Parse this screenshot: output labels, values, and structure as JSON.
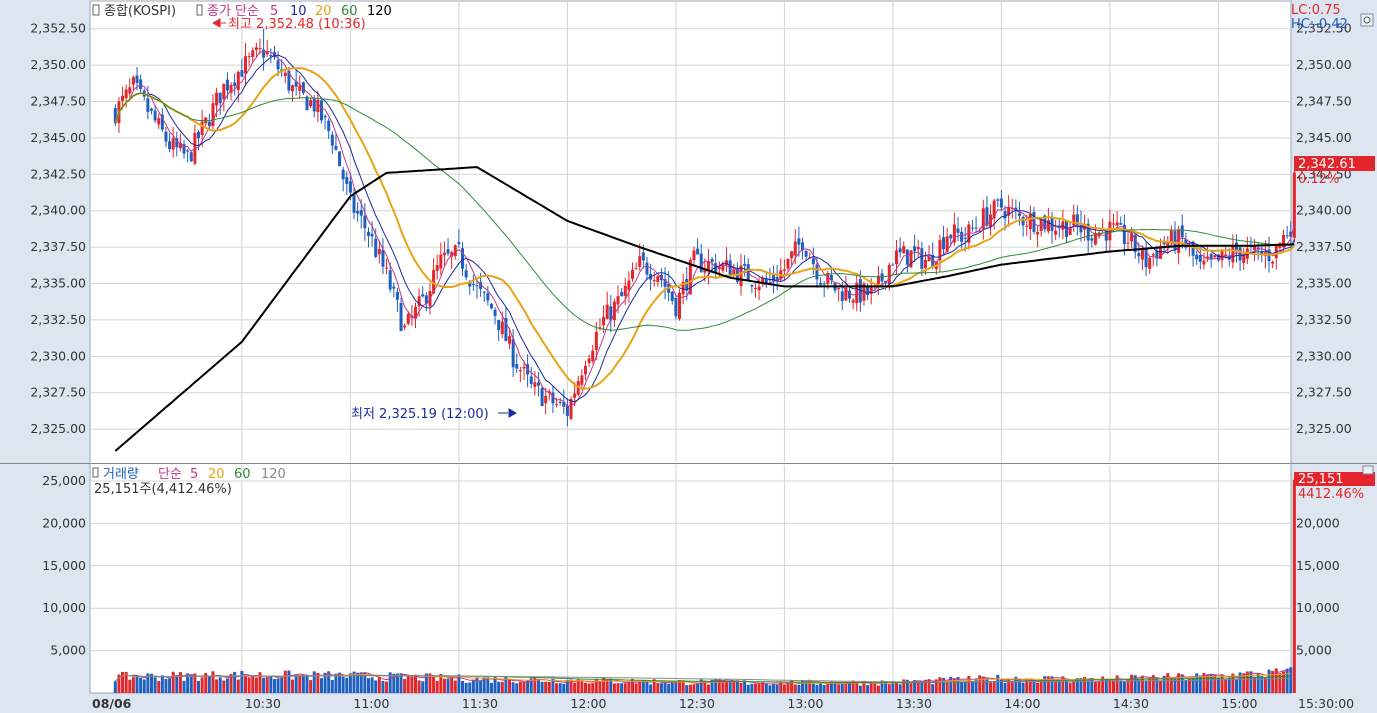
{
  "price_panel": {
    "legend": {
      "series_title": "종합(KOSPI)",
      "ma_prefix": "종가 단순",
      "periods": [
        "5",
        "10",
        "20",
        "60",
        "120"
      ],
      "colors": [
        "#c0368e",
        "#1a2aa0",
        "#e8a317",
        "#2e8b3a",
        "#000000"
      ]
    },
    "high_annotation": "최고 2,352.48 (10:36)",
    "low_annotation": "최저 2,325.19 (12:00)",
    "lc_label": "LC:0.75",
    "hc_label": "HC:-0.42",
    "last_price": "2,342.61",
    "change_pct": "0.12%"
  },
  "volume_panel": {
    "legend": {
      "title": "거래량",
      "ma_prefix": "단순",
      "periods": [
        "5",
        "20",
        "60",
        "120"
      ],
      "colors": [
        "#c0368e",
        "#e8a317",
        "#2e8b3a",
        "#888888"
      ]
    },
    "info": "25,151주(4,412.46%)",
    "last_volume": "25,151",
    "last_pct": "4412.46%"
  },
  "colors": {
    "up": "#e3262b",
    "down": "#1f5fc0",
    "bg": "#ffffff",
    "axis_bg": "#dde6f0",
    "grid": "#d4d4d4"
  },
  "chart_data": [
    {
      "type": "candlestick",
      "title": "종합(KOSPI)",
      "x_ticks": [
        "08/06",
        "10:30",
        "11:00",
        "11:30",
        "12:00",
        "12:30",
        "13:00",
        "13:30",
        "14:00",
        "14:30",
        "15:00",
        "15:30:00"
      ],
      "y_ticks": [
        "2,325.00",
        "2,327.50",
        "2,330.00",
        "2,332.50",
        "2,335.00",
        "2,337.50",
        "2,340.00",
        "2,342.50",
        "2,345.00",
        "2,347.50",
        "2,350.00",
        "2,352.50"
      ],
      "ylim": [
        2322.0,
        2353.0
      ],
      "close_path": [
        [
          "09:55",
          2346.8
        ],
        [
          "10:00",
          2348.5
        ],
        [
          "10:05",
          2346.5
        ],
        [
          "10:10",
          2344.5
        ],
        [
          "10:15",
          2343.6
        ],
        [
          "10:20",
          2346.0
        ],
        [
          "10:25",
          2348.5
        ],
        [
          "10:30",
          2349.8
        ],
        [
          "10:36",
          2351.0
        ],
        [
          "10:40",
          2349.8
        ],
        [
          "10:45",
          2348.0
        ],
        [
          "10:50",
          2347.3
        ],
        [
          "10:55",
          2345.0
        ],
        [
          "11:00",
          2340.5
        ],
        [
          "11:05",
          2338.5
        ],
        [
          "11:10",
          2335.5
        ],
        [
          "11:15",
          2331.8
        ],
        [
          "11:20",
          2333.8
        ],
        [
          "11:25",
          2336.5
        ],
        [
          "11:30",
          2337.0
        ],
        [
          "11:35",
          2334.5
        ],
        [
          "11:40",
          2333.0
        ],
        [
          "11:45",
          2330.0
        ],
        [
          "11:50",
          2327.8
        ],
        [
          "11:55",
          2327.0
        ],
        [
          "12:00",
          2326.2
        ],
        [
          "12:05",
          2330.0
        ],
        [
          "12:10",
          2332.5
        ],
        [
          "12:15",
          2334.0
        ],
        [
          "12:20",
          2336.3
        ],
        [
          "12:25",
          2335.8
        ],
        [
          "12:30",
          2333.5
        ],
        [
          "12:35",
          2336.5
        ],
        [
          "12:40",
          2336.3
        ],
        [
          "12:45",
          2336.0
        ],
        [
          "12:50",
          2335.5
        ],
        [
          "12:55",
          2335.0
        ],
        [
          "13:00",
          2336.0
        ],
        [
          "13:05",
          2338.0
        ],
        [
          "13:10",
          2335.5
        ],
        [
          "13:15",
          2334.5
        ],
        [
          "13:20",
          2334.3
        ],
        [
          "13:25",
          2334.3
        ],
        [
          "13:30",
          2336.8
        ],
        [
          "13:35",
          2337.0
        ],
        [
          "13:40",
          2336.5
        ],
        [
          "13:45",
          2338.5
        ],
        [
          "13:50",
          2338.2
        ],
        [
          "13:55",
          2339.5
        ],
        [
          "14:00",
          2340.3
        ],
        [
          "14:05",
          2339.5
        ],
        [
          "14:10",
          2339.3
        ],
        [
          "14:15",
          2339.0
        ],
        [
          "14:20",
          2339.0
        ],
        [
          "14:25",
          2338.5
        ],
        [
          "14:30",
          2338.7
        ],
        [
          "14:35",
          2338.0
        ],
        [
          "14:40",
          2336.5
        ],
        [
          "14:45",
          2337.8
        ],
        [
          "14:50",
          2338.0
        ],
        [
          "14:55",
          2336.0
        ],
        [
          "15:00",
          2336.5
        ],
        [
          "15:05",
          2337.2
        ],
        [
          "15:10",
          2337.0
        ],
        [
          "15:15",
          2337.0
        ],
        [
          "15:20",
          2339.0
        ],
        [
          "15:21",
          2342.61
        ]
      ],
      "high": {
        "time": "10:36",
        "value": 2352.48
      },
      "low": {
        "time": "12:00",
        "value": 2325.19
      },
      "last": 2342.61,
      "ma120_path": [
        [
          "09:55",
          2323.5
        ],
        [
          "10:30",
          2331.0
        ],
        [
          "11:00",
          2341.0
        ],
        [
          "11:10",
          2342.6
        ],
        [
          "11:35",
          2343.0
        ],
        [
          "12:00",
          2339.3
        ],
        [
          "12:20",
          2337.5
        ],
        [
          "12:45",
          2335.4
        ],
        [
          "13:00",
          2334.8
        ],
        [
          "13:30",
          2334.8
        ],
        [
          "13:45",
          2335.5
        ],
        [
          "14:00",
          2336.3
        ],
        [
          "14:30",
          2337.2
        ],
        [
          "14:50",
          2337.6
        ],
        [
          "15:10",
          2337.6
        ],
        [
          "15:21",
          2337.7
        ]
      ]
    },
    {
      "type": "bar",
      "title": "거래량",
      "x_ticks": [
        "08/06",
        "10:30",
        "11:00",
        "11:30",
        "12:00",
        "12:30",
        "13:00",
        "13:30",
        "14:00",
        "14:30",
        "15:00",
        "15:30:00"
      ],
      "y_ticks": [
        "5,000",
        "10,000",
        "15,000",
        "20,000",
        "25,000"
      ],
      "ylim": [
        0,
        25000
      ],
      "volume_path": [
        [
          "09:55",
          1900
        ],
        [
          "10:30",
          2100
        ],
        [
          "11:00",
          2000
        ],
        [
          "11:30",
          1700
        ],
        [
          "12:00",
          1500
        ],
        [
          "12:30",
          1300
        ],
        [
          "13:00",
          1200
        ],
        [
          "13:30",
          1250
        ],
        [
          "14:00",
          1700
        ],
        [
          "14:30",
          1600
        ],
        [
          "15:00",
          2000
        ],
        [
          "15:20",
          2400
        ]
      ],
      "last_volume": 25151
    }
  ]
}
